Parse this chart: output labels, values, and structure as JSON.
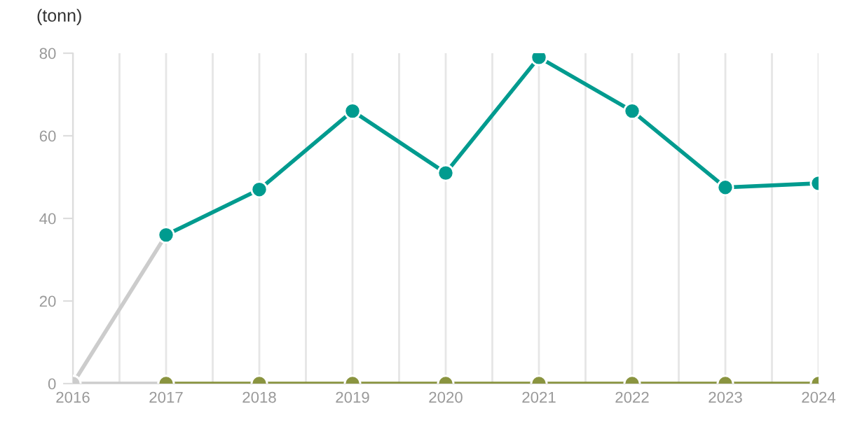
{
  "chart_data": {
    "type": "line",
    "ylabel": "(tonn)",
    "x": [
      2016,
      2017,
      2018,
      2019,
      2020,
      2021,
      2022,
      2023,
      2024
    ],
    "series": [
      {
        "color": "#cccccc",
        "values": [
          0,
          36,
          null,
          null,
          null,
          null,
          null,
          null,
          null
        ]
      },
      {
        "color": "#cccccc",
        "values": [
          0,
          0,
          null,
          null,
          null,
          null,
          null,
          null,
          null
        ]
      },
      {
        "color": "#8a9440",
        "values": [
          null,
          0,
          0,
          0,
          0,
          0,
          0,
          0,
          0
        ]
      },
      {
        "color": "#009b8f",
        "values": [
          null,
          36,
          47,
          66,
          51,
          79,
          66,
          47.5,
          48.5
        ]
      }
    ],
    "xlim": [
      2016,
      2024
    ],
    "xticks": [
      2016,
      {
        "value": 2016.5,
        "label": null
      },
      2017,
      {
        "value": 2017.5,
        "label": null
      },
      2018,
      {
        "value": 2018.5,
        "label": null
      },
      2019,
      {
        "value": 2019.5,
        "label": null
      },
      2020,
      {
        "value": 2020.5,
        "label": null
      },
      2021,
      {
        "value": 2021.5,
        "label": null
      },
      2022,
      {
        "value": 2022.5,
        "label": null
      },
      2023,
      {
        "value": 2023.5,
        "label": null
      },
      2024
    ],
    "ylim": [
      0,
      80
    ],
    "yticks": [
      0,
      20,
      40,
      60,
      80
    ],
    "grid": "x",
    "marker": "circle",
    "line_style": "solid",
    "legend": false
  }
}
